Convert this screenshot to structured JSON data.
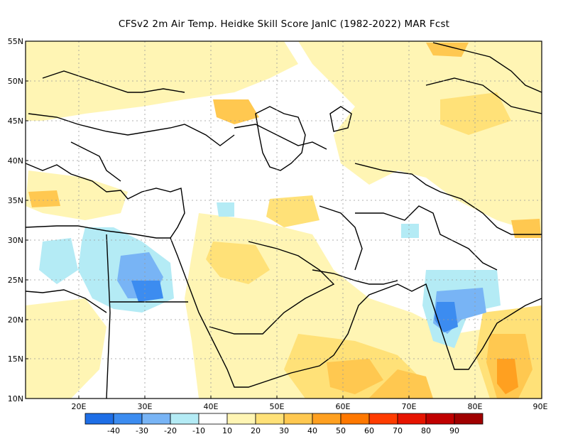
{
  "title": "CFSv2  2m Air Temp. Heidke Skill Score JanIC (1982-2022) MAR Fcst",
  "lat_labels": [
    "55N",
    "50N",
    "45N",
    "40N",
    "35N",
    "30N",
    "25N",
    "20N",
    "15N",
    "10N"
  ],
  "lon_labels": [
    "20E",
    "30E",
    "40E",
    "50E",
    "60E",
    "70E",
    "80E",
    "90E"
  ],
  "legend": {
    "labels": [
      "-40",
      "-30",
      "-20",
      "-10",
      "10",
      "20",
      "30",
      "40",
      "50",
      "60",
      "70",
      "80",
      "90"
    ],
    "colors": [
      "#1e6ee6",
      "#3c8cf0",
      "#78b4f5",
      "#b4ebf5",
      "#ffffff",
      "#fff5b4",
      "#ffe178",
      "#ffc850",
      "#ffa020",
      "#ff7800",
      "#ff3c00",
      "#e61400",
      "#c00000",
      "#a00000"
    ]
  }
}
